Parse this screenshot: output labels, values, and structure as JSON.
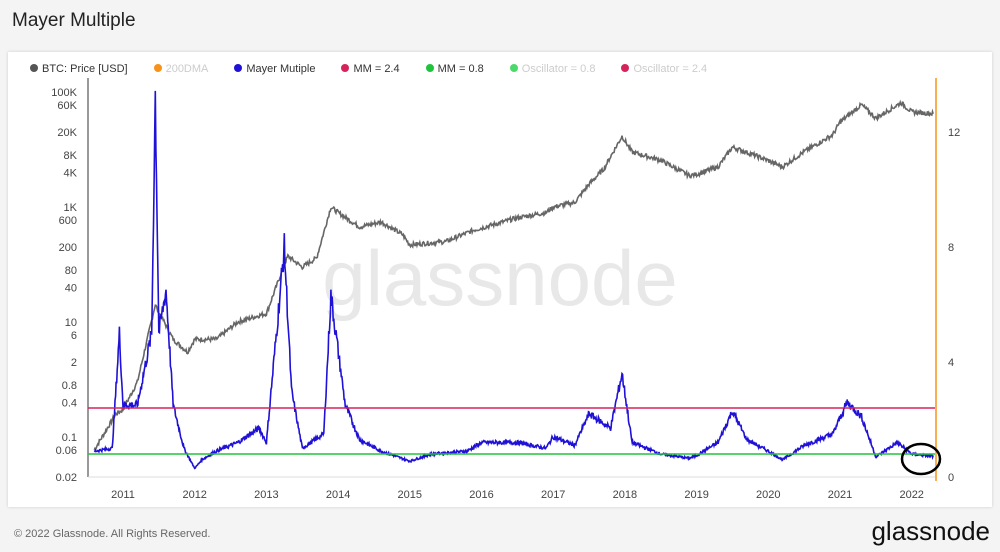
{
  "title": "Mayer Multiple",
  "footer": "© 2022 Glassnode. All Rights Reserved.",
  "logo": "glassnode",
  "watermark": "glassnode",
  "legend": [
    {
      "label": "BTC: Price [USD]",
      "color": "#555555",
      "faded": false
    },
    {
      "label": "200DMA",
      "color": "#f7931a",
      "faded": true
    },
    {
      "label": "Mayer Mutiple",
      "color": "#1f11d6",
      "faded": false
    },
    {
      "label": "MM = 2.4",
      "color": "#d6245a",
      "faded": false
    },
    {
      "label": "MM = 0.8",
      "color": "#22c33c",
      "faded": false
    },
    {
      "label": "Oscillator = 0.8",
      "color": "#4cd96a",
      "faded": true
    },
    {
      "label": "Oscillator = 2.4",
      "color": "#d6245a",
      "faded": true
    }
  ],
  "chart_data": {
    "type": "line",
    "title": "Mayer Multiple",
    "x_ticks": [
      "2011",
      "2012",
      "2013",
      "2014",
      "2015",
      "2016",
      "2017",
      "2018",
      "2019",
      "2020",
      "2021",
      "2022"
    ],
    "left_axis": {
      "scale": "log",
      "ticks": [
        "100K",
        "60K",
        "20K",
        "8K",
        "4K",
        "1K",
        "600",
        "200",
        "80",
        "40",
        "10",
        "6",
        "2",
        "0.8",
        "0.4",
        "0.1",
        "0.06",
        "0.02"
      ],
      "tick_values": [
        100000,
        60000,
        20000,
        8000,
        4000,
        1000,
        600,
        200,
        80,
        40,
        10,
        6,
        2,
        0.8,
        0.4,
        0.1,
        0.06,
        0.02
      ]
    },
    "right_axis": {
      "scale": "linear",
      "range": [
        0,
        14
      ],
      "ticks": [
        "0",
        "4",
        "8",
        "12"
      ]
    },
    "series": [
      {
        "name": "BTC: Price [USD]",
        "axis": "left",
        "color": "#666666",
        "points": [
          [
            2010.6,
            0.06
          ],
          [
            2010.9,
            0.25
          ],
          [
            2011.0,
            0.3
          ],
          [
            2011.2,
            0.9
          ],
          [
            2011.45,
            20
          ],
          [
            2011.5,
            15
          ],
          [
            2011.7,
            5
          ],
          [
            2011.9,
            3
          ],
          [
            2012.0,
            5
          ],
          [
            2012.3,
            5
          ],
          [
            2012.6,
            10
          ],
          [
            2012.9,
            13
          ],
          [
            2013.0,
            14
          ],
          [
            2013.25,
            100
          ],
          [
            2013.3,
            140
          ],
          [
            2013.5,
            90
          ],
          [
            2013.7,
            130
          ],
          [
            2013.9,
            1000
          ],
          [
            2014.0,
            800
          ],
          [
            2014.3,
            450
          ],
          [
            2014.6,
            550
          ],
          [
            2014.9,
            330
          ],
          [
            2015.0,
            220
          ],
          [
            2015.5,
            250
          ],
          [
            2015.9,
            400
          ],
          [
            2016.0,
            430
          ],
          [
            2016.5,
            650
          ],
          [
            2016.9,
            800
          ],
          [
            2017.0,
            1000
          ],
          [
            2017.3,
            1200
          ],
          [
            2017.5,
            2500
          ],
          [
            2017.7,
            4500
          ],
          [
            2017.96,
            17000
          ],
          [
            2018.1,
            9000
          ],
          [
            2018.5,
            6500
          ],
          [
            2018.9,
            3500
          ],
          [
            2019.0,
            3700
          ],
          [
            2019.3,
            5000
          ],
          [
            2019.5,
            11000
          ],
          [
            2019.9,
            7200
          ],
          [
            2020.2,
            5000
          ],
          [
            2020.5,
            9200
          ],
          [
            2020.9,
            18000
          ],
          [
            2021.0,
            30000
          ],
          [
            2021.3,
            60000
          ],
          [
            2021.5,
            35000
          ],
          [
            2021.85,
            65000
          ],
          [
            2022.0,
            45000
          ],
          [
            2022.3,
            42000
          ]
        ]
      },
      {
        "name": "Mayer Mutiple",
        "axis": "right",
        "color": "#1f11d6",
        "points": [
          [
            2010.6,
            0.9
          ],
          [
            2010.85,
            1.0
          ],
          [
            2010.95,
            5.0
          ],
          [
            2011.0,
            2.5
          ],
          [
            2011.2,
            2.5
          ],
          [
            2011.4,
            5
          ],
          [
            2011.45,
            13.3
          ],
          [
            2011.5,
            5
          ],
          [
            2011.6,
            6.5
          ],
          [
            2011.7,
            2.5
          ],
          [
            2011.85,
            1.0
          ],
          [
            2012.0,
            0.3
          ],
          [
            2012.1,
            0.6
          ],
          [
            2012.3,
            0.9
          ],
          [
            2012.6,
            1.2
          ],
          [
            2012.9,
            1.7
          ],
          [
            2013.0,
            1.2
          ],
          [
            2013.25,
            8.0
          ],
          [
            2013.35,
            3.0
          ],
          [
            2013.5,
            1.0
          ],
          [
            2013.8,
            1.5
          ],
          [
            2013.9,
            6.3
          ],
          [
            2014.1,
            2.5
          ],
          [
            2014.3,
            1.3
          ],
          [
            2014.6,
            0.9
          ],
          [
            2015.0,
            0.55
          ],
          [
            2015.3,
            0.8
          ],
          [
            2015.8,
            0.9
          ],
          [
            2016.0,
            1.2
          ],
          [
            2016.5,
            1.2
          ],
          [
            2016.9,
            1.0
          ],
          [
            2017.0,
            1.4
          ],
          [
            2017.3,
            1.1
          ],
          [
            2017.5,
            2.2
          ],
          [
            2017.8,
            1.7
          ],
          [
            2017.96,
            3.6
          ],
          [
            2018.1,
            1.2
          ],
          [
            2018.5,
            0.8
          ],
          [
            2018.9,
            0.65
          ],
          [
            2019.0,
            0.75
          ],
          [
            2019.3,
            1.2
          ],
          [
            2019.5,
            2.3
          ],
          [
            2019.7,
            1.3
          ],
          [
            2020.0,
            0.9
          ],
          [
            2020.2,
            0.6
          ],
          [
            2020.5,
            1.1
          ],
          [
            2020.9,
            1.5
          ],
          [
            2021.1,
            2.6
          ],
          [
            2021.3,
            2.1
          ],
          [
            2021.5,
            0.7
          ],
          [
            2021.8,
            1.2
          ],
          [
            2022.0,
            0.8
          ],
          [
            2022.3,
            0.72
          ]
        ]
      },
      {
        "name": "MM = 2.4",
        "axis": "right",
        "color": "#d6245a",
        "constant": 2.4
      },
      {
        "name": "MM = 0.8",
        "axis": "right",
        "color": "#22c33c",
        "constant": 0.8
      }
    ],
    "annotation": "circle around 2022 Mayer Multiple near 0.8",
    "grid": false,
    "legend_position": "top-left"
  }
}
